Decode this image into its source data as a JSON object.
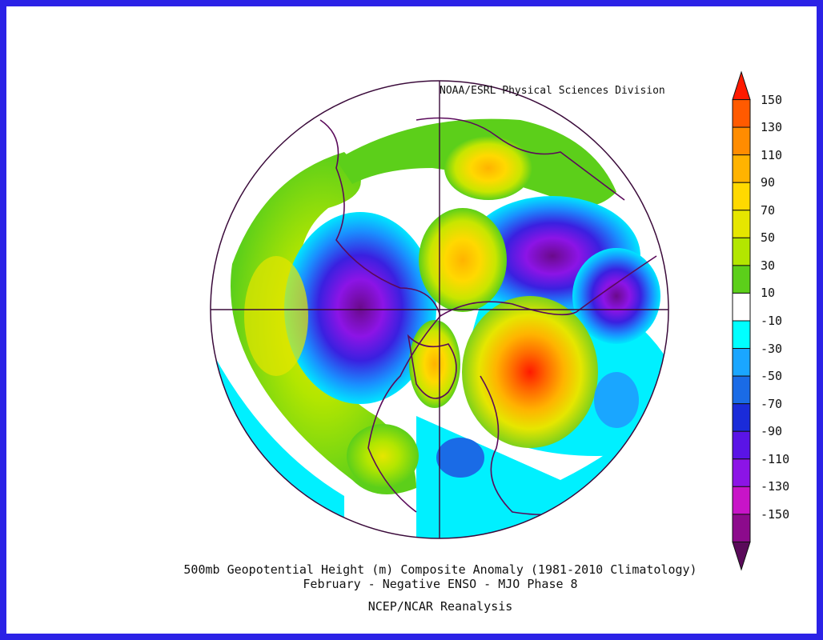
{
  "credit": "NOAA/ESRL Physical Sciences Division",
  "captions": {
    "line1": "500mb Geopotential Height (m) Composite Anomaly (1981-2010 Climatology)",
    "line2": "February - Negative ENSO - MJO Phase 8",
    "line3": "NCEP/NCAR Reanalysis"
  },
  "colorbar": {
    "labels": [
      "150",
      "130",
      "110",
      "90",
      "70",
      "50",
      "30",
      "10",
      "-10",
      "-30",
      "-50",
      "-70",
      "-90",
      "-110",
      "-130",
      "-150"
    ],
    "colors": [
      "#ff1a00",
      "#ff5a00",
      "#ff8c00",
      "#ffb300",
      "#ffd900",
      "#e6e600",
      "#b3e600",
      "#5ccf1a",
      "#ffffff",
      "#00ffff",
      "#1aa6ff",
      "#1a6be6",
      "#1a2bd9",
      "#5a14e6",
      "#8c14e6",
      "#c814c8",
      "#8c0a8c",
      "#5a0a5a"
    ]
  }
}
